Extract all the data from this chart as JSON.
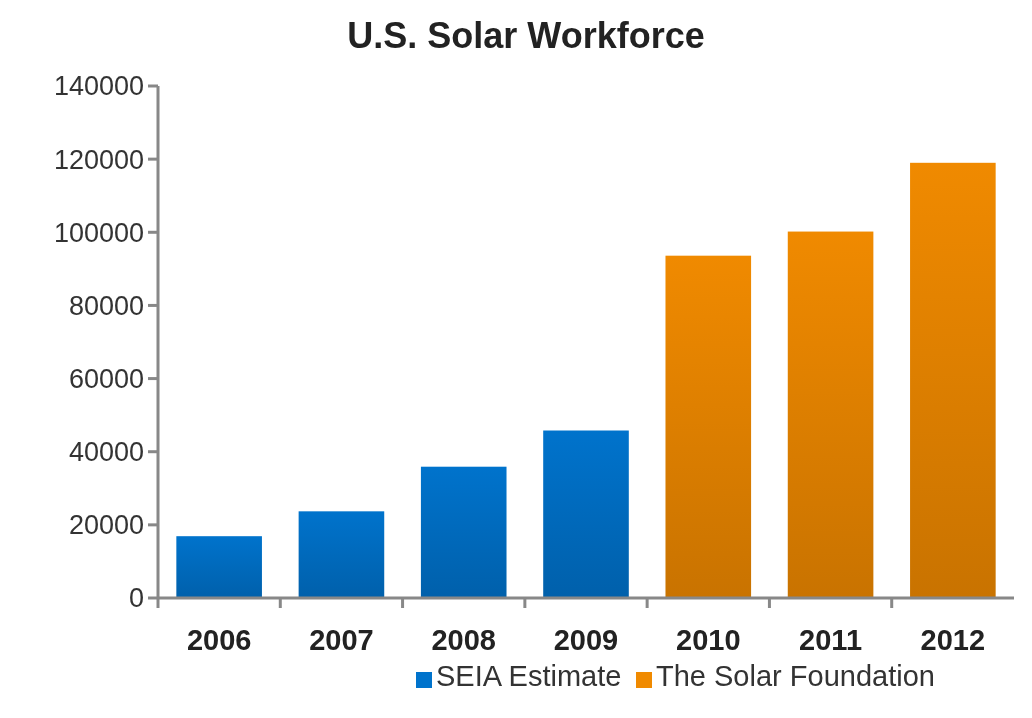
{
  "chart_data": {
    "type": "bar",
    "title": "U.S. Solar Workforce",
    "categories": [
      "2006",
      "2007",
      "2008",
      "2009",
      "2010",
      "2011",
      "2012"
    ],
    "series": [
      {
        "name": "SEIA Estimate",
        "color": "#0073cc",
        "values": [
          16900,
          23700,
          35900,
          45800,
          null,
          null,
          null
        ]
      },
      {
        "name": "The Solar Foundation",
        "color": "#f08a00",
        "values": [
          null,
          null,
          null,
          null,
          93600,
          100200,
          119000
        ]
      }
    ],
    "ylim": [
      0,
      140000
    ],
    "yticks": [
      0,
      20000,
      40000,
      60000,
      80000,
      100000,
      120000,
      140000
    ],
    "grid": false,
    "legend": "bottom"
  }
}
